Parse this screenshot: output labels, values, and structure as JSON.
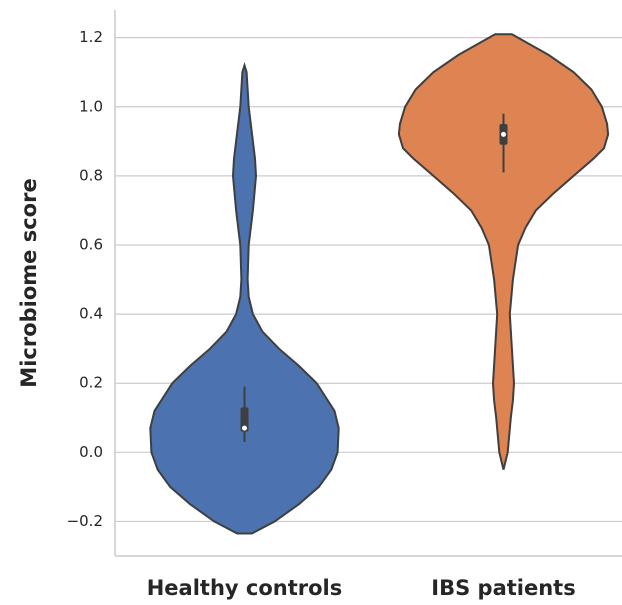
{
  "chart_data": {
    "type": "violin",
    "ylabel": "Microbiome score",
    "categories": [
      "Healthy controls",
      "IBS patients"
    ],
    "colors": [
      "#4c72b0",
      "#dd8452"
    ],
    "ylim": [
      -0.3,
      1.28
    ],
    "yticks": [
      {
        "value": -0.2,
        "label": "−0.2"
      },
      {
        "value": 0,
        "label": "0.0"
      },
      0.2,
      0.4,
      0.6,
      0.8,
      {
        "value": 1,
        "label": "1.0"
      },
      1.2
    ],
    "grid": true,
    "violins": [
      {
        "y": [
          -0.235,
          -0.2,
          -0.15,
          -0.1,
          -0.05,
          0,
          0.07,
          0.12,
          0.2,
          0.25,
          0.3,
          0.35,
          0.4,
          0.45,
          0.5,
          0.6,
          0.7,
          0.8,
          0.85,
          0.9,
          1.0,
          1.1,
          1.12
        ],
        "density": [
          0.07,
          0.29,
          0.52,
          0.71,
          0.83,
          0.89,
          0.9,
          0.86,
          0.69,
          0.52,
          0.33,
          0.17,
          0.08,
          0.04,
          0.03,
          0.04,
          0.08,
          0.11,
          0.1,
          0.08,
          0.04,
          0.02,
          0
        ],
        "whisker_low": 0.03,
        "q1": 0.06,
        "median": 0.07,
        "q3": 0.13,
        "whisker_high": 0.19
      },
      {
        "y": [
          -0.05,
          0,
          0.1,
          0.15,
          0.2,
          0.3,
          0.4,
          0.5,
          0.6,
          0.65,
          0.7,
          0.75,
          0.8,
          0.85,
          0.88,
          0.92,
          0.95,
          1.0,
          1.05,
          1.1,
          1.15,
          1.21
        ],
        "density": [
          0,
          0.04,
          0.07,
          0.09,
          0.1,
          0.08,
          0.06,
          0.09,
          0.14,
          0.21,
          0.31,
          0.48,
          0.67,
          0.86,
          0.96,
          1,
          0.99,
          0.94,
          0.84,
          0.67,
          0.43,
          0.08
        ],
        "whisker_low": 0.81,
        "q1": 0.89,
        "median": 0.92,
        "q3": 0.95,
        "whisker_high": 0.98
      }
    ]
  }
}
